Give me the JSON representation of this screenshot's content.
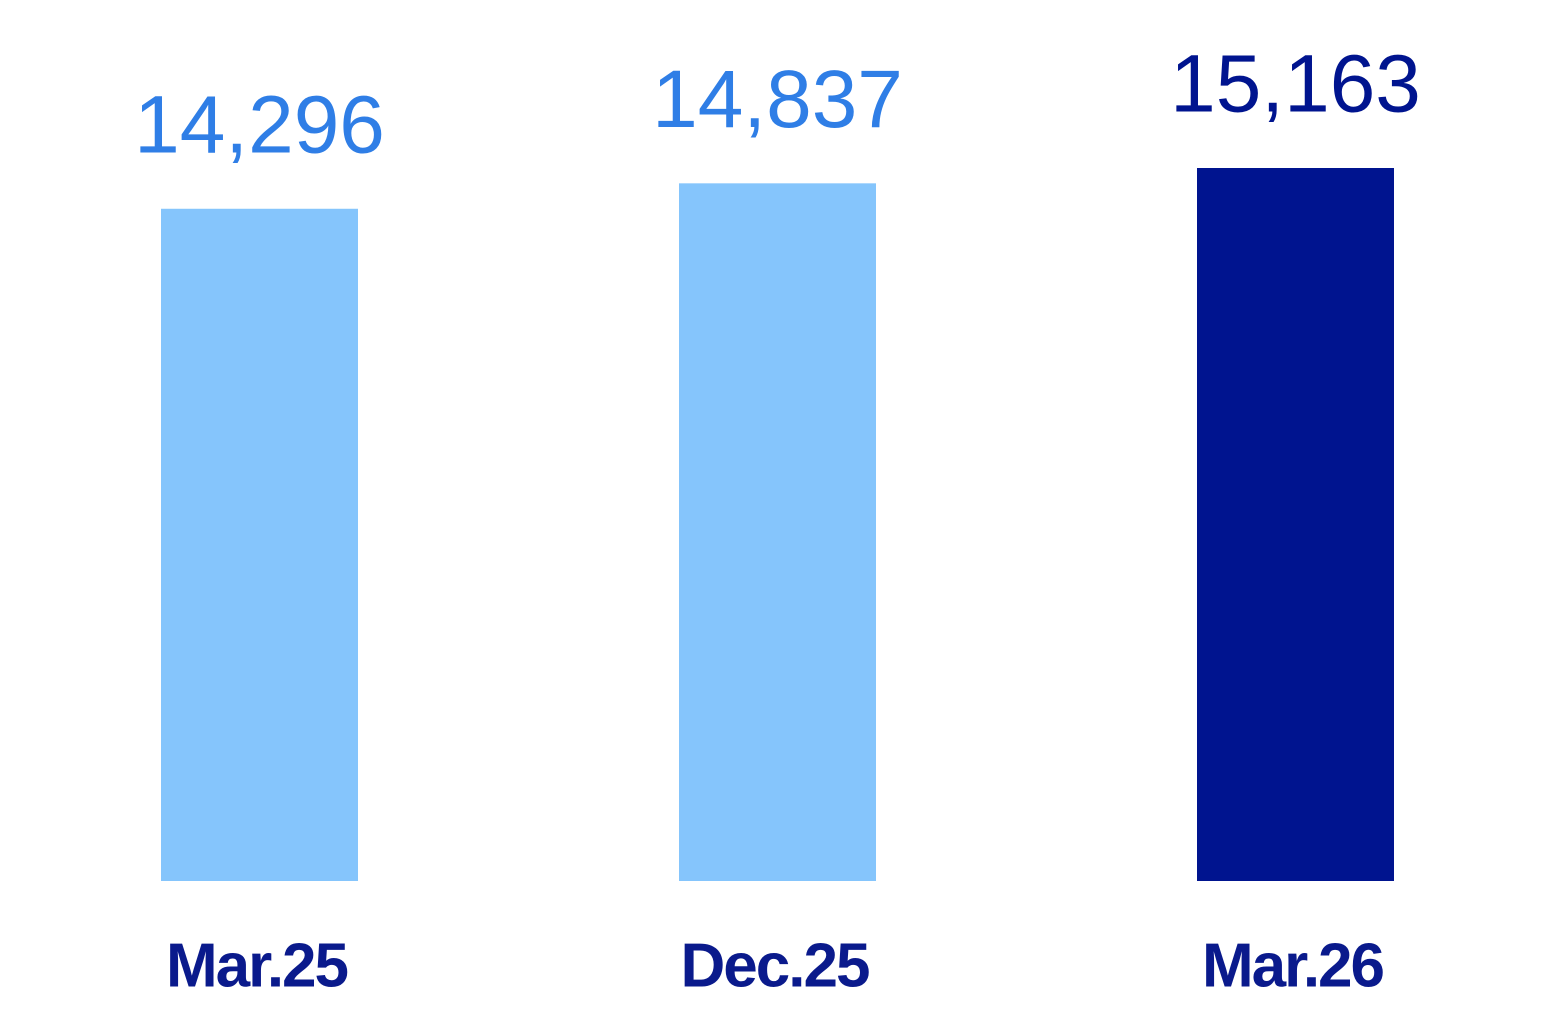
{
  "chart_data": {
    "type": "bar",
    "categories": [
      "Mar.25",
      "Dec.25",
      "Mar.26"
    ],
    "values": [
      14296,
      14837,
      15163
    ],
    "value_labels": [
      "14,296",
      "14,837",
      "15,163"
    ],
    "colors": [
      "#85c5fc",
      "#85c5fc",
      "#00148f"
    ],
    "label_colors": [
      "#2f7ee6",
      "#2f7ee6",
      "#00148f"
    ],
    "category_color": "#0a1a8c"
  }
}
